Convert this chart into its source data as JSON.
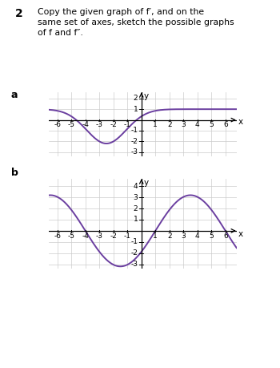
{
  "bg_color": "#ffffff",
  "curve_color": "#6b3fa0",
  "text_color": "#000000",
  "grid_color": "#cccccc",
  "tab_color": "#7b3f9e",
  "axis_color": "#000000",
  "title_number": "2",
  "title_text": "Copy the given graph of f′, and on the\nsame set of axes, sketch the possible graphs\nof f and f″.",
  "graph_a_label": "a",
  "graph_b_label": "b",
  "graph_a": {
    "xlim": [
      -6.6,
      6.8
    ],
    "ylim": [
      -3.4,
      2.6
    ],
    "xticks": [
      -6,
      -5,
      -4,
      -3,
      -2,
      -1,
      1,
      2,
      3,
      4,
      5,
      6
    ],
    "yticks": [
      -3,
      -2,
      -1,
      1,
      2
    ],
    "xlabel": "x",
    "ylabel": "y"
  },
  "graph_b": {
    "xlim": [
      -6.6,
      6.8
    ],
    "ylim": [
      -3.4,
      4.7
    ],
    "xticks": [
      -6,
      -5,
      -4,
      -3,
      -2,
      -1,
      1,
      2,
      3,
      4,
      5,
      6
    ],
    "yticks": [
      -3,
      -2,
      -1,
      1,
      2,
      3,
      4
    ],
    "xlabel": "x",
    "ylabel": "y"
  }
}
